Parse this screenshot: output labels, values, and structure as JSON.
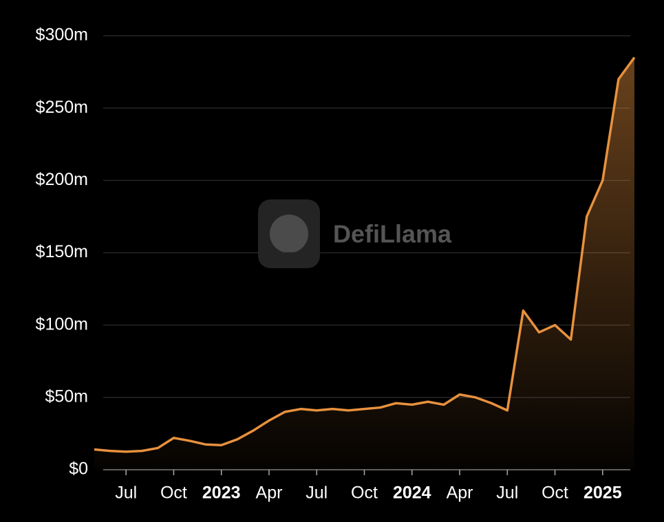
{
  "chart_data": {
    "type": "area",
    "watermark": "DefiLlama",
    "x": [
      "2022-05",
      "2022-06",
      "2022-07",
      "2022-08",
      "2022-09",
      "2022-10",
      "2022-11",
      "2022-12",
      "2023-01",
      "2023-02",
      "2023-03",
      "2023-04",
      "2023-05",
      "2023-06",
      "2023-07",
      "2023-08",
      "2023-09",
      "2023-10",
      "2023-11",
      "2023-12",
      "2024-01",
      "2024-02",
      "2024-03",
      "2024-04",
      "2024-05",
      "2024-06",
      "2024-07",
      "2024-08",
      "2024-09",
      "2024-10",
      "2024-11",
      "2024-12",
      "2025-01",
      "2025-02",
      "2025-03"
    ],
    "series": [
      {
        "color": "#e8913e",
        "values": [
          14,
          13,
          12.5,
          13,
          15,
          22,
          20,
          17.5,
          17,
          21,
          27,
          34,
          40,
          42,
          41,
          42,
          41,
          42,
          43,
          46,
          45,
          47,
          45,
          52,
          50,
          46,
          41,
          110,
          95,
          100,
          90,
          175,
          200,
          270,
          285
        ]
      }
    ],
    "xlim": [
      "2022-05",
      "2025-03"
    ],
    "xticks": [
      {
        "value": "2022-07",
        "label": "Jul"
      },
      {
        "value": "2022-10",
        "label": "Oct"
      },
      {
        "value": "2023-01",
        "label": "2023"
      },
      {
        "value": "2023-04",
        "label": "Apr"
      },
      {
        "value": "2023-07",
        "label": "Jul"
      },
      {
        "value": "2023-10",
        "label": "Oct"
      },
      {
        "value": "2024-01",
        "label": "2024"
      },
      {
        "value": "2024-04",
        "label": "Apr"
      },
      {
        "value": "2024-07",
        "label": "Jul"
      },
      {
        "value": "2024-10",
        "label": "Oct"
      },
      {
        "value": "2025-01",
        "label": "2025"
      }
    ],
    "ylim": [
      0,
      300
    ],
    "yticks": [
      {
        "value": 0,
        "label": "$0"
      },
      {
        "value": 50,
        "label": "$50m"
      },
      {
        "value": 100,
        "label": "$100m"
      },
      {
        "value": 150,
        "label": "$150m"
      },
      {
        "value": 200,
        "label": "$200m"
      },
      {
        "value": 250,
        "label": "$250m"
      },
      {
        "value": 300,
        "label": "$300m"
      }
    ],
    "grid": true
  }
}
